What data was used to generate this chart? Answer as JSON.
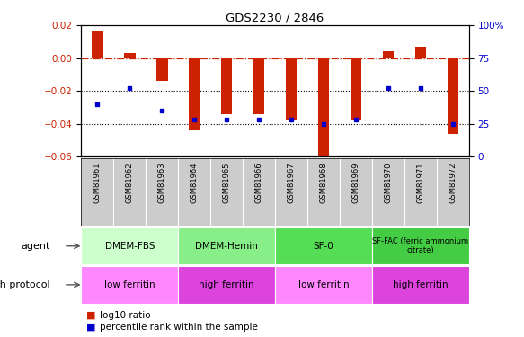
{
  "title": "GDS2230 / 2846",
  "samples": [
    "GSM81961",
    "GSM81962",
    "GSM81963",
    "GSM81964",
    "GSM81965",
    "GSM81966",
    "GSM81967",
    "GSM81968",
    "GSM81969",
    "GSM81970",
    "GSM81971",
    "GSM81972"
  ],
  "log10_ratio": [
    0.016,
    0.003,
    -0.014,
    -0.044,
    -0.034,
    -0.034,
    -0.038,
    -0.062,
    -0.038,
    0.004,
    0.007,
    -0.046
  ],
  "percentile_rank": [
    40,
    52,
    35,
    28,
    28,
    28,
    28,
    25,
    28,
    52,
    52,
    25
  ],
  "ylim_left": [
    -0.06,
    0.02
  ],
  "ylim_right": [
    0,
    100
  ],
  "yticks_left": [
    -0.06,
    -0.04,
    -0.02,
    0.0,
    0.02
  ],
  "yticks_right": [
    0,
    25,
    50,
    75,
    100
  ],
  "bar_color": "#cc2200",
  "dot_color": "#0000cc",
  "hline_color": "#cc2200",
  "dotted_line_color": "#000000",
  "xlabel_bg": "#cccccc",
  "agent_groups": [
    {
      "label": "DMEM-FBS",
      "start": 0,
      "end": 3,
      "color": "#ccffcc"
    },
    {
      "label": "DMEM-Hemin",
      "start": 3,
      "end": 6,
      "color": "#88ee88"
    },
    {
      "label": "SF-0",
      "start": 6,
      "end": 9,
      "color": "#55dd55"
    },
    {
      "label": "SF-FAC (ferric ammonium\ncitrate)",
      "start": 9,
      "end": 12,
      "color": "#44cc44"
    }
  ],
  "growth_groups": [
    {
      "label": "low ferritin",
      "start": 0,
      "end": 3,
      "color": "#ff88ff"
    },
    {
      "label": "high ferritin",
      "start": 3,
      "end": 6,
      "color": "#dd44dd"
    },
    {
      "label": "low ferritin",
      "start": 6,
      "end": 9,
      "color": "#ff88ff"
    },
    {
      "label": "high ferritin",
      "start": 9,
      "end": 12,
      "color": "#dd44dd"
    }
  ],
  "legend_bar_label": "log10 ratio",
  "legend_dot_label": "percentile rank within the sample",
  "agent_label": "agent",
  "growth_label": "growth protocol",
  "bar_width": 0.35
}
